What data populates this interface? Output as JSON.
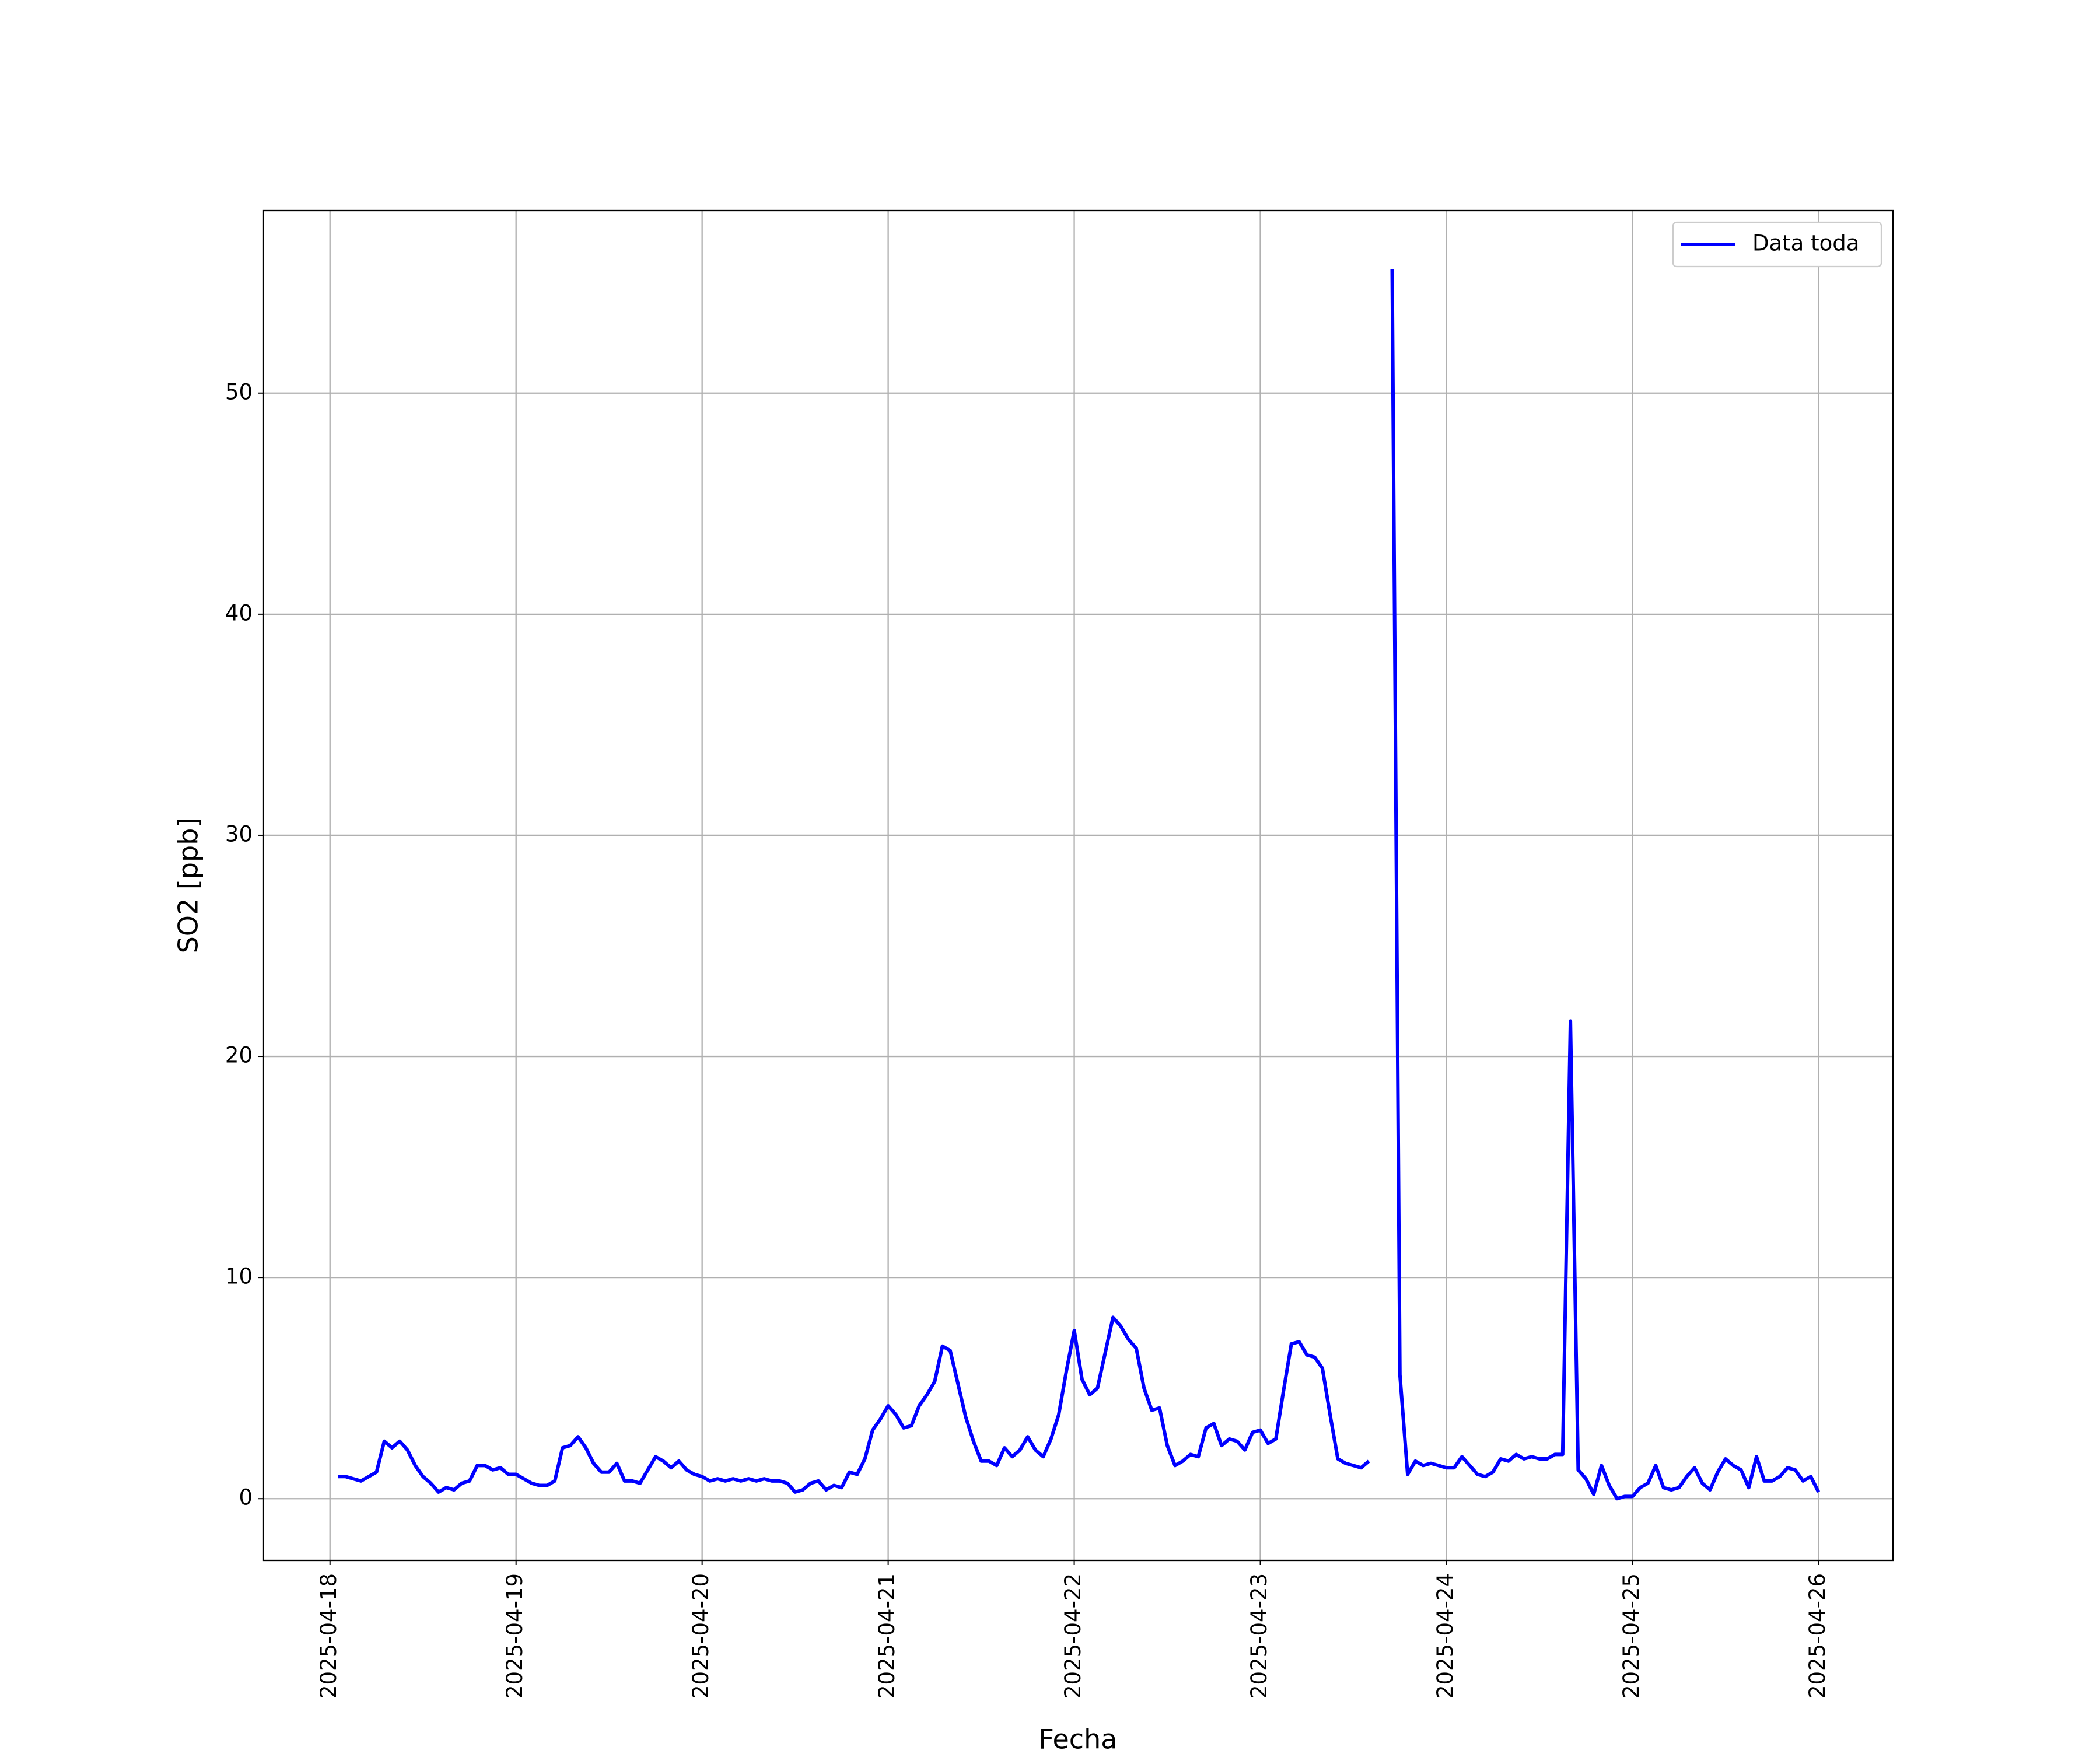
{
  "chart_data": {
    "type": "line",
    "xlabel": "Fecha",
    "ylabel": "SO2 [ppb]",
    "x": [
      "2025-04-18 01:00",
      "2025-04-18 02:00",
      "2025-04-18 03:00",
      "2025-04-18 04:00",
      "2025-04-18 05:00",
      "2025-04-18 06:00",
      "2025-04-18 07:00",
      "2025-04-18 08:00",
      "2025-04-18 09:00",
      "2025-04-18 10:00",
      "2025-04-18 11:00",
      "2025-04-18 12:00",
      "2025-04-18 13:00",
      "2025-04-18 14:00",
      "2025-04-18 15:00",
      "2025-04-18 16:00",
      "2025-04-18 17:00",
      "2025-04-18 18:00",
      "2025-04-18 19:00",
      "2025-04-18 20:00",
      "2025-04-18 21:00",
      "2025-04-18 22:00",
      "2025-04-18 23:00",
      "2025-04-19 00:00",
      "2025-04-19 01:00",
      "2025-04-19 02:00",
      "2025-04-19 03:00",
      "2025-04-19 04:00",
      "2025-04-19 05:00",
      "2025-04-19 06:00",
      "2025-04-19 07:00",
      "2025-04-19 08:00",
      "2025-04-19 09:00",
      "2025-04-19 10:00",
      "2025-04-19 11:00",
      "2025-04-19 12:00",
      "2025-04-19 13:00",
      "2025-04-19 14:00",
      "2025-04-19 15:00",
      "2025-04-19 16:00",
      "2025-04-19 17:00",
      "2025-04-19 18:00",
      "2025-04-19 19:00",
      "2025-04-19 20:00",
      "2025-04-19 21:00",
      "2025-04-19 22:00",
      "2025-04-19 23:00",
      "2025-04-20 00:00",
      "2025-04-20 01:00",
      "2025-04-20 02:00",
      "2025-04-20 03:00",
      "2025-04-20 04:00",
      "2025-04-20 05:00",
      "2025-04-20 06:00",
      "2025-04-20 07:00",
      "2025-04-20 08:00",
      "2025-04-20 09:00",
      "2025-04-20 10:00",
      "2025-04-20 11:00",
      "2025-04-20 12:00",
      "2025-04-20 13:00",
      "2025-04-20 14:00",
      "2025-04-20 15:00",
      "2025-04-20 16:00",
      "2025-04-20 17:00",
      "2025-04-20 18:00",
      "2025-04-20 19:00",
      "2025-04-20 20:00",
      "2025-04-20 21:00",
      "2025-04-20 22:00",
      "2025-04-20 23:00",
      "2025-04-21 00:00",
      "2025-04-21 01:00",
      "2025-04-21 02:00",
      "2025-04-21 03:00",
      "2025-04-21 04:00",
      "2025-04-21 05:00",
      "2025-04-21 06:00",
      "2025-04-21 07:00",
      "2025-04-21 08:00",
      "2025-04-21 09:00",
      "2025-04-21 10:00",
      "2025-04-21 11:00",
      "2025-04-21 12:00",
      "2025-04-21 13:00",
      "2025-04-21 14:00",
      "2025-04-21 15:00",
      "2025-04-21 16:00",
      "2025-04-21 17:00",
      "2025-04-21 18:00",
      "2025-04-21 19:00",
      "2025-04-21 20:00",
      "2025-04-21 21:00",
      "2025-04-21 22:00",
      "2025-04-21 23:00",
      "2025-04-22 00:00",
      "2025-04-22 01:00",
      "2025-04-22 02:00",
      "2025-04-22 03:00",
      "2025-04-22 04:00",
      "2025-04-22 05:00",
      "2025-04-22 06:00",
      "2025-04-22 07:00",
      "2025-04-22 08:00",
      "2025-04-22 09:00",
      "2025-04-22 10:00",
      "2025-04-22 11:00",
      "2025-04-22 12:00",
      "2025-04-22 13:00",
      "2025-04-22 14:00",
      "2025-04-22 15:00",
      "2025-04-22 16:00",
      "2025-04-22 17:00",
      "2025-04-22 18:00",
      "2025-04-22 19:00",
      "2025-04-22 20:00",
      "2025-04-22 21:00",
      "2025-04-22 22:00",
      "2025-04-22 23:00",
      "2025-04-23 00:00",
      "2025-04-23 01:00",
      "2025-04-23 02:00",
      "2025-04-23 03:00",
      "2025-04-23 04:00",
      "2025-04-23 05:00",
      "2025-04-23 06:00",
      "2025-04-23 07:00",
      "2025-04-23 08:00",
      "2025-04-23 09:00",
      "2025-04-23 10:00",
      "2025-04-23 11:00",
      "2025-04-23 12:00",
      "2025-04-23 13:00",
      "2025-04-23 14:00",
      "2025-04-23 15:00",
      "2025-04-23 16:00",
      "2025-04-23 17:00",
      "2025-04-23 18:00",
      "2025-04-23 19:00",
      "2025-04-23 20:00",
      "2025-04-23 21:00",
      "2025-04-23 22:00",
      "2025-04-23 23:00",
      "2025-04-24 00:00",
      "2025-04-24 01:00",
      "2025-04-24 02:00",
      "2025-04-24 03:00",
      "2025-04-24 04:00",
      "2025-04-24 05:00",
      "2025-04-24 06:00",
      "2025-04-24 07:00",
      "2025-04-24 08:00",
      "2025-04-24 09:00",
      "2025-04-24 10:00",
      "2025-04-24 11:00",
      "2025-04-24 12:00",
      "2025-04-24 13:00",
      "2025-04-24 14:00",
      "2025-04-24 15:00",
      "2025-04-24 16:00",
      "2025-04-24 17:00",
      "2025-04-24 18:00",
      "2025-04-24 19:00",
      "2025-04-24 20:00",
      "2025-04-24 21:00",
      "2025-04-24 22:00",
      "2025-04-24 23:00",
      "2025-04-25 00:00",
      "2025-04-25 01:00",
      "2025-04-25 02:00",
      "2025-04-25 03:00",
      "2025-04-25 04:00",
      "2025-04-25 05:00",
      "2025-04-25 06:00",
      "2025-04-25 07:00",
      "2025-04-25 08:00",
      "2025-04-25 09:00",
      "2025-04-25 10:00",
      "2025-04-25 11:00",
      "2025-04-25 12:00",
      "2025-04-25 13:00",
      "2025-04-25 14:00",
      "2025-04-25 15:00",
      "2025-04-25 16:00",
      "2025-04-25 17:00",
      "2025-04-25 18:00",
      "2025-04-25 19:00",
      "2025-04-25 20:00",
      "2025-04-25 21:00",
      "2025-04-25 22:00",
      "2025-04-25 23:00",
      "2025-04-26 00:00"
    ],
    "series": [
      {
        "name": "Data toda",
        "color": "#0000ff",
        "values": [
          1.0,
          1.0,
          0.9,
          0.8,
          1.0,
          1.2,
          2.6,
          2.3,
          2.6,
          2.2,
          1.5,
          1.0,
          0.7,
          0.3,
          0.5,
          0.4,
          0.7,
          0.8,
          1.5,
          1.5,
          1.3,
          1.4,
          1.1,
          1.1,
          0.9,
          0.7,
          0.6,
          0.6,
          0.8,
          2.3,
          2.4,
          2.8,
          2.3,
          1.6,
          1.2,
          1.2,
          1.6,
          0.8,
          0.8,
          0.7,
          1.3,
          1.9,
          1.7,
          1.4,
          1.7,
          1.3,
          1.1,
          1.0,
          0.8,
          0.9,
          0.8,
          0.9,
          0.8,
          0.9,
          0.8,
          0.9,
          0.8,
          0.8,
          0.7,
          0.3,
          0.4,
          0.7,
          0.8,
          0.4,
          0.6,
          0.5,
          1.2,
          1.1,
          1.8,
          3.1,
          3.6,
          4.2,
          3.8,
          3.2,
          3.3,
          4.2,
          4.7,
          5.3,
          6.9,
          6.7,
          5.2,
          3.7,
          2.6,
          1.7,
          1.7,
          1.5,
          2.3,
          1.9,
          2.2,
          2.8,
          2.2,
          1.9,
          2.7,
          3.8,
          5.8,
          7.6,
          5.4,
          4.7,
          5.0,
          6.6,
          8.2,
          7.8,
          7.2,
          6.8,
          5.0,
          4.0,
          4.1,
          2.4,
          1.5,
          1.7,
          2.0,
          1.9,
          3.2,
          3.4,
          2.4,
          2.7,
          2.6,
          2.2,
          3.0,
          3.1,
          2.5,
          2.7,
          4.9,
          7.0,
          7.1,
          6.5,
          6.4,
          5.9,
          3.8,
          1.8,
          1.6,
          1.5,
          1.4,
          1.7,
          null,
          null,
          55.6,
          5.6,
          1.1,
          1.7,
          1.5,
          1.6,
          1.5,
          1.4,
          1.4,
          1.9,
          1.5,
          1.1,
          1.0,
          1.2,
          1.8,
          1.7,
          2.0,
          1.8,
          1.9,
          1.8,
          1.8,
          2.0,
          2.0,
          21.6,
          1.3,
          0.9,
          0.2,
          1.5,
          0.6,
          0.0,
          0.1,
          0.1,
          0.5,
          0.7,
          1.5,
          0.5,
          0.4,
          0.5,
          1.0,
          1.4,
          0.7,
          0.4,
          1.2,
          1.8,
          1.5,
          1.3,
          0.5,
          1.9,
          0.8,
          0.8,
          1.0,
          1.4,
          1.3,
          0.8,
          1.0,
          0.3
        ]
      }
    ],
    "xlim": [
      "2025-04-17 15:22",
      "2025-04-26 09:36"
    ],
    "xticks": [
      "2025-04-18",
      "2025-04-19",
      "2025-04-20",
      "2025-04-21",
      "2025-04-22",
      "2025-04-23",
      "2025-04-24",
      "2025-04-25",
      "2025-04-26"
    ],
    "ylim": [
      -2.79,
      58.25
    ],
    "yticks": [
      0,
      10,
      20,
      30,
      40,
      50
    ],
    "grid": true,
    "legend": "upper right"
  }
}
